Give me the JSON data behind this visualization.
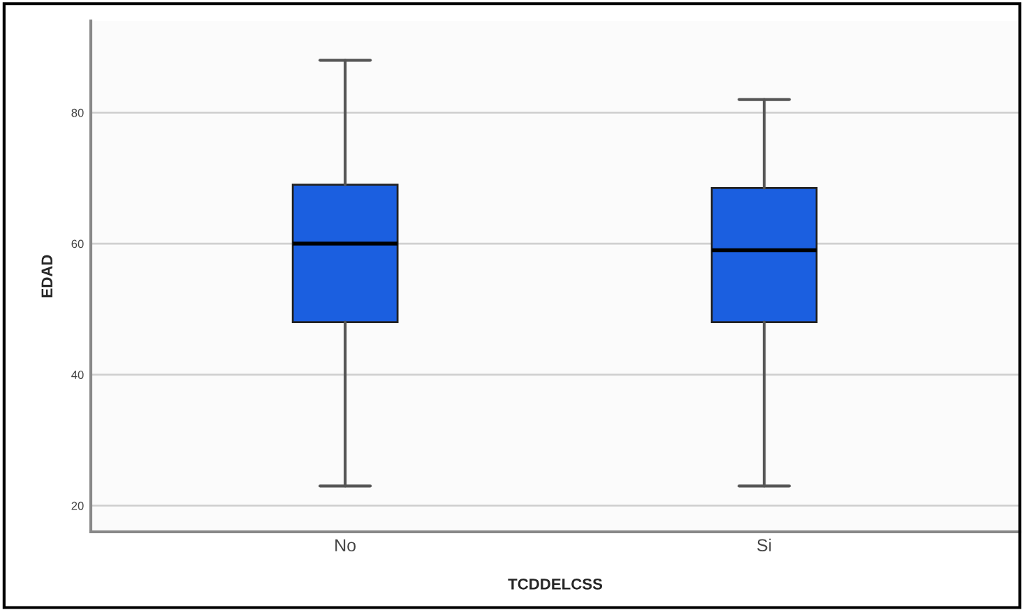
{
  "chart_data": {
    "type": "box",
    "xlabel": "TCDDELCSS",
    "ylabel": "EDAD",
    "categories": [
      "No",
      "Si"
    ],
    "series": [
      {
        "color": "#1b5fe0",
        "boxes": [
          {
            "low": 23,
            "q1": 48,
            "median": 60,
            "q3": 69,
            "high": 88
          },
          {
            "low": 23,
            "q1": 48,
            "median": 59,
            "q3": 68.5,
            "high": 82
          }
        ]
      }
    ],
    "ylim": [
      16,
      94
    ],
    "yticks": [
      20,
      40,
      60,
      80
    ],
    "grid": "y"
  }
}
